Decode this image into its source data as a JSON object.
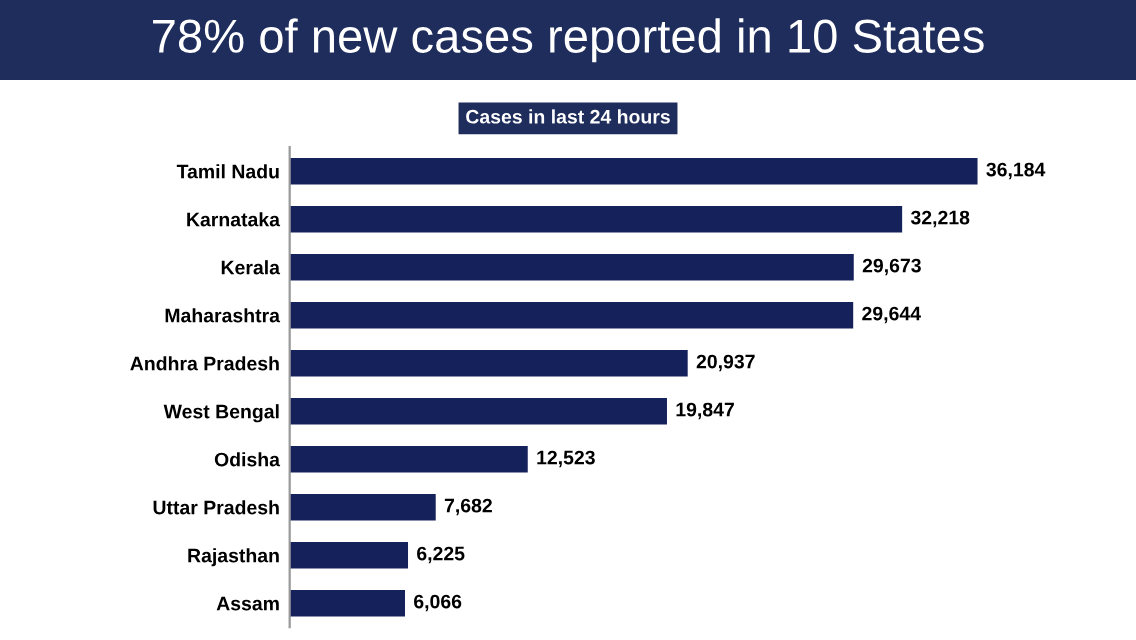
{
  "chart_data": {
    "type": "bar",
    "orientation": "horizontal",
    "title": "78% of new cases reported in 10 States",
    "subtitle": "Cases in last 24 hours",
    "categories": [
      "Tamil Nadu",
      "Karnataka",
      "Kerala",
      "Maharashtra",
      "Andhra Pradesh",
      "West Bengal",
      "Odisha",
      "Uttar Pradesh",
      "Rajasthan",
      "Assam"
    ],
    "values": [
      36184,
      32218,
      29673,
      29644,
      20937,
      19847,
      12523,
      7682,
      6225,
      6066
    ],
    "value_labels": [
      "36,184",
      "32,218",
      "29,673",
      "29,644",
      "20,937",
      "19,847",
      "12,523",
      "7,682",
      "6,225",
      "6,066"
    ],
    "color": "#14215a"
  }
}
